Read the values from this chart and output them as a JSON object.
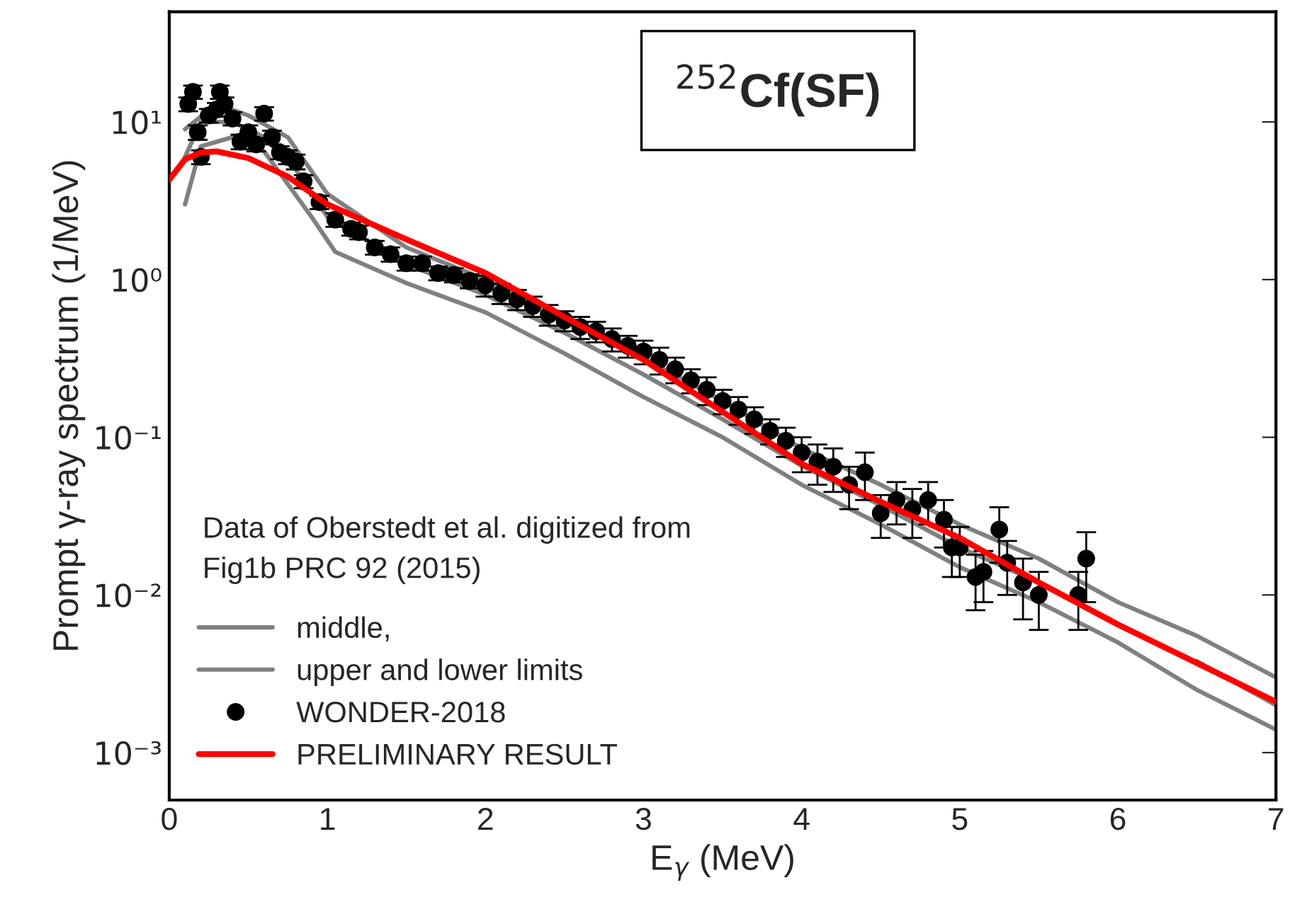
{
  "chart_data": {
    "type": "line",
    "title": "$^{252}$Cf(SF)",
    "xlabel": "E$_{γ}$ (MeV)",
    "ylabel": "Prompt γ-ray spectrum (1/MeV)",
    "annotations": [
      "Data of Oberstedt et al. digitized from\nFig1b PRC 92 (2015)"
    ],
    "log": "y",
    "grid": false,
    "legend": "bottom left",
    "xlim": [
      0,
      7
    ],
    "xticks": [
      0,
      1,
      2,
      3,
      4,
      5,
      6,
      7
    ],
    "ylim": [
      0.0005,
      50
    ],
    "yticks": [
      {
        "value": 0.001,
        "label": "10⁻³"
      },
      {
        "value": 0.01,
        "label": "10⁻²"
      },
      {
        "value": 0.1,
        "label": "10⁻¹"
      },
      {
        "value": 1,
        "label": "10⁰"
      },
      {
        "value": 10,
        "label": "10¹"
      }
    ],
    "series": [
      {
        "name": "middle,",
        "color": "#808080",
        "x": [
          0.1,
          0.2,
          0.4,
          0.6,
          0.8,
          1.0,
          1.5,
          2,
          2.5,
          3,
          3.5,
          4,
          4.5,
          5,
          5.5,
          6,
          6.5,
          7
        ],
        "values": [
          6,
          10,
          10,
          8,
          5,
          2.5,
          1.25,
          0.8,
          0.46,
          0.25,
          0.13,
          0.066,
          0.037,
          0.02,
          0.012,
          null,
          0.0038,
          0.002
        ]
      },
      {
        "name": "upper and lower limits",
        "color": "#808080",
        "x": [
          0.1,
          0.3,
          0.5,
          0.75,
          1.0,
          1.5,
          2,
          2.5,
          3,
          3.5,
          4,
          4.5,
          5,
          5.5,
          6,
          6.5,
          7
        ],
        "values": [
          9,
          13,
          11,
          8,
          3.5,
          1.6,
          1.0,
          0.6,
          0.32,
          0.17,
          0.085,
          0.05,
          0.028,
          0.017,
          0.009,
          0.0055,
          0.003
        ]
      },
      {
        "color": "#808080",
        "x": [
          0.1,
          0.2,
          0.4,
          0.6,
          0.9,
          1.05,
          1.5,
          2,
          2.5,
          3,
          3.5,
          4,
          4.5,
          5,
          5.5,
          6,
          6.5,
          7
        ],
        "values": [
          3,
          7,
          8,
          6.5,
          2.5,
          1.5,
          0.95,
          0.62,
          0.34,
          0.18,
          0.1,
          0.05,
          0.028,
          0.015,
          0.009,
          0.005,
          0.0025,
          0.0014
        ]
      },
      {
        "name": "WONDER-2018",
        "type": "scatter",
        "marker": "circle",
        "color": "#000000",
        "x": [
          0.12,
          0.15,
          0.18,
          0.2,
          0.25,
          0.3,
          0.32,
          0.35,
          0.4,
          0.45,
          0.5,
          0.55,
          0.6,
          0.65,
          0.7,
          0.75,
          0.8,
          0.85,
          0.95,
          1.05,
          1.15,
          1.2,
          1.3,
          1.4,
          1.5,
          1.6,
          1.7,
          1.8,
          1.9,
          2.0,
          2.1,
          2.2,
          2.3,
          2.4,
          2.5,
          2.6,
          2.7,
          2.8,
          2.9,
          3.0,
          3.1,
          3.2,
          3.3,
          3.4,
          3.5,
          3.6,
          3.7,
          3.8,
          3.9,
          4.0,
          4.1,
          4.2,
          4.3,
          4.4,
          4.5,
          4.6,
          4.7,
          4.8,
          4.9,
          4.95,
          5.0,
          5.1,
          5.15,
          5.25,
          5.3,
          5.4,
          5.5,
          5.75,
          5.8
        ],
        "values": [
          13,
          15.5,
          8.6,
          6,
          11,
          12,
          15.5,
          13,
          10.5,
          7.5,
          8.6,
          7.2,
          11.3,
          8,
          6.4,
          6,
          5.6,
          4.2,
          3.1,
          2.4,
          2.1,
          2.0,
          1.6,
          1.45,
          1.27,
          1.27,
          1.1,
          1.07,
          0.98,
          0.92,
          0.82,
          0.75,
          0.68,
          0.6,
          0.55,
          0.5,
          0.47,
          0.42,
          0.38,
          0.35,
          0.31,
          0.27,
          0.23,
          0.2,
          0.17,
          0.15,
          0.13,
          0.11,
          0.095,
          0.08,
          0.07,
          0.065,
          0.05,
          0.06,
          0.033,
          0.04,
          0.035,
          0.04,
          0.03,
          0.02,
          0.02,
          0.013,
          0.014,
          0.026,
          0.016,
          0.012,
          0.01,
          0.01,
          0.017
        ],
        "errors": [
          1.3,
          1.5,
          0.9,
          0.6,
          1.1,
          1.2,
          1.5,
          1.3,
          1,
          0.8,
          0.9,
          0.7,
          1.1,
          0.8,
          0.6,
          0.6,
          0.6,
          0.4,
          0.3,
          0.24,
          0.2,
          0.2,
          0.16,
          0.15,
          0.13,
          0.13,
          0.11,
          0.11,
          0.1,
          0.14,
          0.12,
          0.11,
          0.1,
          0.09,
          0.08,
          0.08,
          0.07,
          0.07,
          0.06,
          0.06,
          0.06,
          0.05,
          0.04,
          0.04,
          0.03,
          0.03,
          0.025,
          0.02,
          0.02,
          0.02,
          0.02,
          0.02,
          0.015,
          0.02,
          0.01,
          0.012,
          0.012,
          0.012,
          0.01,
          0.007,
          0.007,
          0.005,
          0.005,
          0.01,
          0.006,
          0.005,
          0.004,
          0.004,
          0.008
        ]
      },
      {
        "name": "PRELIMINARY RESULT",
        "color": "#ff0000",
        "x": [
          0,
          0.1,
          0.2,
          0.3,
          0.5,
          0.75,
          1,
          1.5,
          2,
          2.5,
          3,
          3.5,
          4,
          4.5,
          5,
          5.5,
          6,
          6.5,
          7
        ],
        "values": [
          4.3,
          5.8,
          6.4,
          6.5,
          5.9,
          4.5,
          3.0,
          1.8,
          1.1,
          0.58,
          0.31,
          0.145,
          0.068,
          0.039,
          0.023,
          0.012,
          0.0065,
          0.0037,
          0.0021
        ]
      }
    ]
  }
}
